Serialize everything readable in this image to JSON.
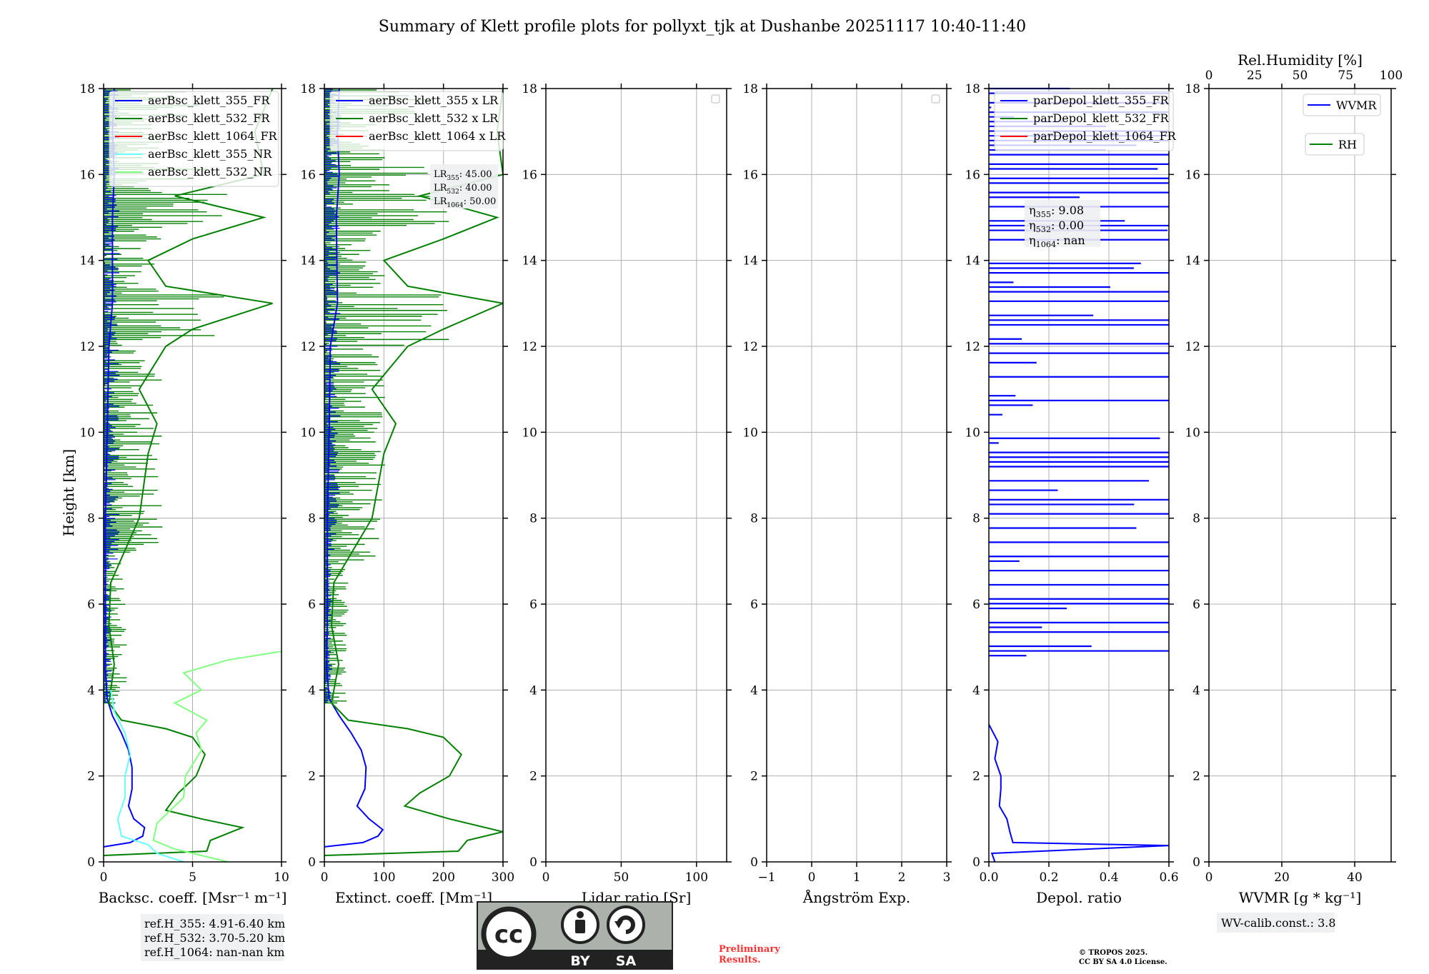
{
  "title": "Summary of Klett profile plots for pollyxt_tjk at Dushanbe 20251117 10:40-11:40",
  "colors": {
    "blue": "#0000ff",
    "green": "#008000",
    "red": "#ff0000",
    "cyan": "#66ffff",
    "lightgreen": "#80ff80",
    "grid": "#b0b0b0",
    "boxbg": "#eef0f2",
    "preliminary": "#ff3333"
  },
  "ylabel": "Height [km]",
  "ylim": [
    0,
    18
  ],
  "yticks": [
    "0",
    "2",
    "4",
    "6",
    "8",
    "10",
    "12",
    "14",
    "16",
    "18"
  ],
  "chart_data": [
    {
      "type": "line",
      "id": "bsc",
      "xlabel": "Backsc. coeff. [Msr⁻¹ m⁻¹]",
      "xlim": [
        0,
        10
      ],
      "xticks": [
        {
          "v": 0,
          "t": "0"
        },
        {
          "v": 5,
          "t": "5"
        },
        {
          "v": 10,
          "t": "10"
        }
      ],
      "legend": [
        "aerBsc_klett_355_FR",
        "aerBsc_klett_532_FR",
        "aerBsc_klett_1064_FR",
        "aerBsc_klett_355_NR",
        "aerBsc_klett_532_NR"
      ],
      "legend_colors": [
        "blue",
        "green",
        "red",
        "cyan",
        "lightgreen"
      ],
      "series": [
        {
          "name": "aerBsc_klett_355_FR",
          "color": "blue",
          "points": [
            [
              0,
              0.35
            ],
            [
              1.5,
              0.45
            ],
            [
              2.2,
              0.6
            ],
            [
              2.3,
              0.8
            ],
            [
              1.7,
              1.0
            ],
            [
              1.4,
              1.3
            ],
            [
              1.6,
              1.7
            ],
            [
              1.6,
              2.2
            ],
            [
              1.4,
              2.6
            ],
            [
              1.0,
              3.0
            ],
            [
              0.5,
              3.4
            ],
            [
              0.2,
              3.8
            ],
            [
              0.1,
              4.5
            ],
            [
              0.1,
              6
            ],
            [
              0.1,
              8
            ],
            [
              0.2,
              10
            ],
            [
              0.3,
              12
            ],
            [
              0.5,
              13
            ],
            [
              0.5,
              15
            ],
            [
              0.6,
              16
            ],
            [
              0.5,
              17
            ],
            [
              0.6,
              18
            ]
          ]
        },
        {
          "name": "aerBsc_klett_532_FR",
          "color": "green",
          "points": [
            [
              0,
              0.15
            ],
            [
              5.8,
              0.25
            ],
            [
              6.0,
              0.5
            ],
            [
              7.8,
              0.8
            ],
            [
              5.5,
              1.0
            ],
            [
              3.5,
              1.2
            ],
            [
              4.2,
              1.6
            ],
            [
              5.2,
              2.0
            ],
            [
              5.7,
              2.5
            ],
            [
              5.0,
              2.9
            ],
            [
              3.5,
              3.1
            ],
            [
              1.0,
              3.3
            ],
            [
              0.3,
              3.7
            ],
            [
              0.6,
              4.6
            ],
            [
              0.3,
              5.5
            ],
            [
              0.4,
              6.5
            ],
            [
              2.0,
              8.0
            ],
            [
              2.5,
              9.5
            ],
            [
              3.0,
              10.2
            ],
            [
              2.0,
              11
            ],
            [
              3.5,
              12
            ],
            [
              5.0,
              12.4
            ],
            [
              9.5,
              13.0
            ],
            [
              3.5,
              13.4
            ],
            [
              2.5,
              14
            ],
            [
              5.0,
              14.5
            ],
            [
              9.0,
              15.0
            ],
            [
              4.0,
              15.5
            ],
            [
              9.0,
              16
            ],
            [
              8.5,
              17
            ],
            [
              9.5,
              18
            ]
          ]
        },
        {
          "name": "aerBsc_klett_355_NR",
          "color": "cyan",
          "points": [
            [
              4.5,
              0.0
            ],
            [
              3.0,
              0.2
            ],
            [
              2.5,
              0.4
            ],
            [
              1.0,
              0.6
            ],
            [
              0.8,
              1.0
            ],
            [
              1.2,
              1.5
            ],
            [
              1.2,
              2.0
            ],
            [
              1.5,
              2.5
            ],
            [
              1.2,
              3.0
            ],
            [
              0.6,
              3.5
            ],
            [
              0.4,
              4.0
            ]
          ]
        },
        {
          "name": "aerBsc_klett_532_NR",
          "color": "lightgreen",
          "points": [
            [
              7.0,
              0.0
            ],
            [
              5.5,
              0.15
            ],
            [
              4.0,
              0.3
            ],
            [
              2.8,
              0.5
            ],
            [
              3.0,
              0.9
            ],
            [
              4.5,
              1.5
            ],
            [
              4.6,
              2.0
            ],
            [
              5.5,
              2.6
            ],
            [
              5.2,
              3.0
            ],
            [
              5.8,
              3.3
            ],
            [
              4.0,
              3.7
            ],
            [
              5.5,
              4.0
            ],
            [
              4.5,
              4.4
            ],
            [
              7.0,
              4.7
            ],
            [
              10.0,
              4.9
            ]
          ]
        }
      ],
      "annotations": [
        "ref.H_355: 4.91-6.40 km",
        "ref.H_532: 3.70-5.20 km",
        "ref.H_1064: nan-nan km"
      ]
    },
    {
      "type": "line",
      "id": "ext",
      "xlabel": "Extinct. coeff. [Mm⁻¹]",
      "xlim": [
        0,
        300
      ],
      "xticks": [
        {
          "v": 0,
          "t": "0"
        },
        {
          "v": 100,
          "t": "100"
        },
        {
          "v": 200,
          "t": "200"
        },
        {
          "v": 300,
          "t": "300"
        }
      ],
      "legend": [
        "aerBsc_klett_355 x LR",
        "aerBsc_klett_532 x LR",
        "aerBsc_klett_1064 x LR"
      ],
      "legend_colors": [
        "blue",
        "green",
        "red"
      ],
      "series": [
        {
          "name": "aerBsc_klett_355 x LR",
          "color": "blue",
          "points": [
            [
              0,
              0.35
            ],
            [
              65,
              0.45
            ],
            [
              90,
              0.6
            ],
            [
              98,
              0.75
            ],
            [
              75,
              1.0
            ],
            [
              55,
              1.3
            ],
            [
              68,
              1.7
            ],
            [
              70,
              2.2
            ],
            [
              62,
              2.6
            ],
            [
              45,
              3.0
            ],
            [
              25,
              3.4
            ],
            [
              8,
              3.8
            ],
            [
              4,
              4.5
            ],
            [
              5,
              6
            ],
            [
              5,
              8
            ],
            [
              8,
              10
            ],
            [
              10,
              12
            ],
            [
              22,
              13
            ],
            [
              20,
              15
            ],
            [
              25,
              16
            ],
            [
              22,
              17
            ],
            [
              25,
              18
            ]
          ]
        },
        {
          "name": "aerBsc_klett_532 x LR",
          "color": "green",
          "points": [
            [
              0,
              0.15
            ],
            [
              225,
              0.25
            ],
            [
              240,
              0.5
            ],
            [
              300,
              0.7
            ],
            [
              210,
              1.0
            ],
            [
              135,
              1.3
            ],
            [
              160,
              1.6
            ],
            [
              210,
              2.0
            ],
            [
              230,
              2.5
            ],
            [
              200,
              2.9
            ],
            [
              140,
              3.1
            ],
            [
              40,
              3.3
            ],
            [
              12,
              3.7
            ],
            [
              24,
              4.6
            ],
            [
              12,
              5.5
            ],
            [
              16,
              6.5
            ],
            [
              80,
              8.0
            ],
            [
              100,
              9.5
            ],
            [
              120,
              10.2
            ],
            [
              80,
              11
            ],
            [
              140,
              12
            ],
            [
              200,
              12.4
            ],
            [
              300,
              13.0
            ],
            [
              140,
              13.4
            ],
            [
              100,
              14
            ],
            [
              200,
              14.5
            ],
            [
              290,
              15.0
            ],
            [
              160,
              15.5
            ],
            [
              300,
              16
            ],
            [
              290,
              17
            ],
            [
              300,
              18
            ]
          ]
        }
      ],
      "lr_box": [
        {
          "n": "355",
          "v": ": 45.00"
        },
        {
          "n": "532",
          "v": ": 40.00"
        },
        {
          "n": "1064",
          "v": ": 50.00"
        }
      ]
    },
    {
      "type": "line",
      "id": "lr",
      "xlabel": "Lidar ratio [Sr]",
      "xlim": [
        0,
        120
      ],
      "xticks": [
        {
          "v": 0,
          "t": "0"
        },
        {
          "v": 50,
          "t": "50"
        },
        {
          "v": 100,
          "t": "100"
        }
      ],
      "series": []
    },
    {
      "type": "line",
      "id": "ae",
      "xlabel": "Ångström Exp.",
      "xlim": [
        -1,
        3
      ],
      "xticks": [
        {
          "v": -1,
          "t": "−1"
        },
        {
          "v": 0,
          "t": "0"
        },
        {
          "v": 1,
          "t": "1"
        },
        {
          "v": 2,
          "t": "2"
        },
        {
          "v": 3,
          "t": "3"
        }
      ],
      "series": []
    },
    {
      "type": "line",
      "id": "depol",
      "xlabel": "Depol. ratio",
      "xlim": [
        0,
        0.6
      ],
      "xticks": [
        {
          "v": 0,
          "t": "0.0"
        },
        {
          "v": 0.2,
          "t": "0.2"
        },
        {
          "v": 0.4,
          "t": "0.4"
        },
        {
          "v": 0.6,
          "t": "0.6"
        }
      ],
      "legend": [
        "parDepol_klett_355_FR",
        "parDepol_klett_532_FR",
        "parDepol_klett_1064_FR"
      ],
      "legend_colors": [
        "blue",
        "green",
        "red"
      ],
      "series": [
        {
          "name": "parDepol_klett_355_FR",
          "color": "blue",
          "points": [
            [
              0.02,
              0.0
            ],
            [
              0.01,
              0.2
            ],
            [
              0.6,
              0.38
            ],
            [
              0.08,
              0.45
            ],
            [
              0.07,
              0.7
            ],
            [
              0.06,
              1.0
            ],
            [
              0.035,
              1.3
            ],
            [
              0.04,
              1.7
            ],
            [
              0.04,
              2.0
            ],
            [
              0.02,
              2.4
            ],
            [
              0.03,
              2.8
            ],
            [
              0.0,
              3.2
            ]
          ]
        }
      ],
      "eta_box": [
        {
          "n": "355",
          "v": ": 9.08"
        },
        {
          "n": "532",
          "v": ": 0.00"
        },
        {
          "n": "1064",
          "v": ": nan"
        }
      ]
    },
    {
      "type": "line",
      "id": "wv",
      "xlabel": "WVMR [g * kg⁻¹]",
      "xlim": [
        0,
        50
      ],
      "xticks": [
        {
          "v": 0,
          "t": "0"
        },
        {
          "v": 20,
          "t": "20"
        },
        {
          "v": 40,
          "t": "40"
        }
      ],
      "top_xlabel": "Rel.Humidity [%]",
      "top_xlim": [
        0,
        100
      ],
      "top_xticks": [
        {
          "v": 0,
          "t": "0"
        },
        {
          "v": 25,
          "t": "25"
        },
        {
          "v": 50,
          "t": "50"
        },
        {
          "v": 75,
          "t": "75"
        },
        {
          "v": 100,
          "t": "100"
        }
      ],
      "legend": [
        "WVMR",
        "RH"
      ],
      "legend_colors": [
        "blue",
        "green"
      ],
      "series": [],
      "annotations": [
        "WV-calib.const.: 3.8"
      ]
    }
  ],
  "footer": {
    "cc_label": "cc",
    "by_label": "BY",
    "sa_label": "SA",
    "preliminary_line1": "Preliminary",
    "preliminary_line2": "Results.",
    "copyright_line1": "© TROPOS 2025.",
    "copyright_line2": "CC BY SA 4.0 License."
  }
}
